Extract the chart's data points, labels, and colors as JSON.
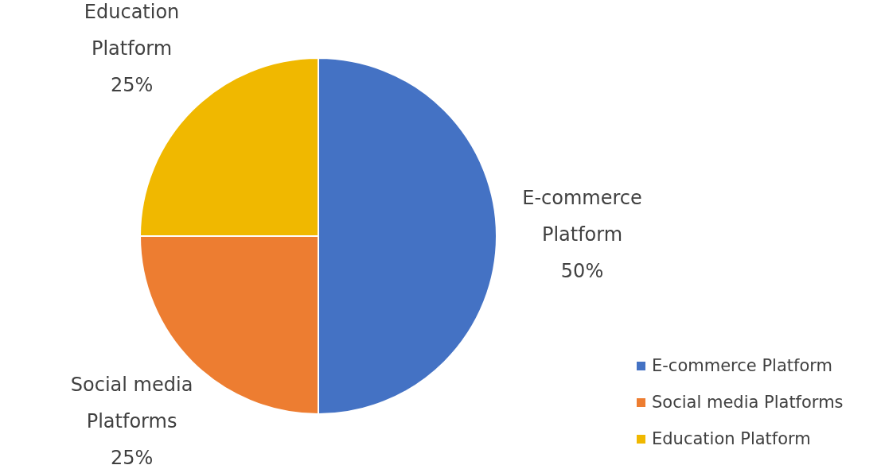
{
  "chart_data": {
    "type": "pie",
    "categories": [
      "E-commerce Platform",
      "Social media Platforms",
      "Education Platform"
    ],
    "values": [
      50,
      25,
      25
    ],
    "colors": [
      "#4472c4",
      "#ed7d31",
      "#f0b800"
    ],
    "value_labels": [
      "50%",
      "25%",
      "25%"
    ],
    "legend": "bottom right"
  }
}
